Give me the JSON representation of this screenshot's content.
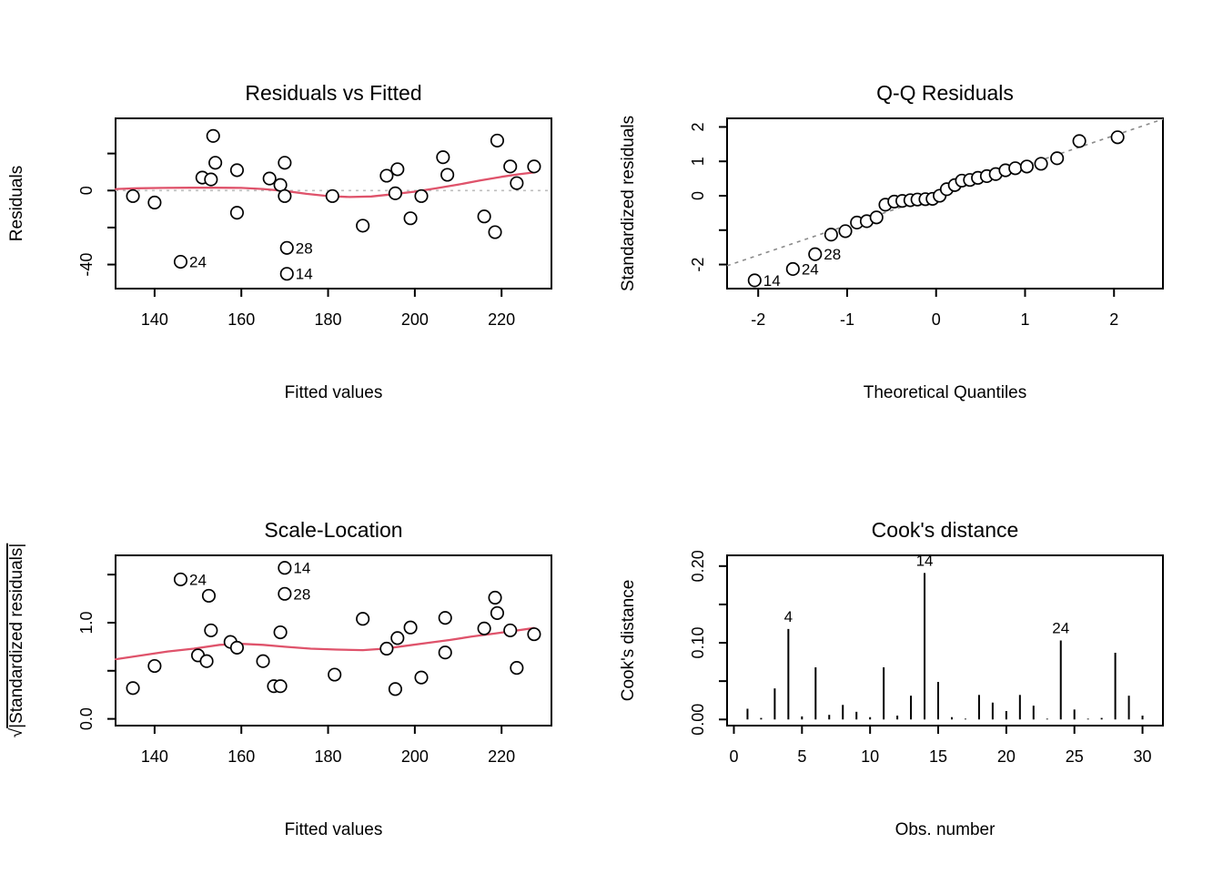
{
  "figure": {
    "background": "#ffffff",
    "smooth_red": "#DF536B",
    "ref_gray": "#BEBEBE",
    "qqline_gray": "#8a8a8a",
    "point_stroke": "#000000"
  },
  "chart_data": [
    {
      "type": "scatter",
      "title": "Residuals vs Fitted",
      "xlabel": "Fitted values",
      "ylabel": "Residuals",
      "xlim": [
        131,
        231.5
      ],
      "ylim": [
        -53,
        39
      ],
      "grid": false,
      "xticks": [
        {
          "v": 140,
          "label": "140"
        },
        {
          "v": 160,
          "label": "160"
        },
        {
          "v": 180,
          "label": "180"
        },
        {
          "v": 200,
          "label": "200"
        },
        {
          "v": 220,
          "label": "220"
        }
      ],
      "yticks": [
        {
          "v": 20,
          "label": ""
        },
        {
          "v": 0,
          "label": "0"
        },
        {
          "v": -20,
          "label": ""
        },
        {
          "v": -40,
          "label": "-40"
        }
      ],
      "ref_line": {
        "y": 0
      },
      "points": [
        [
          135,
          -3
        ],
        [
          140,
          -6.5
        ],
        [
          151,
          7
        ],
        [
          153.5,
          29.5
        ],
        [
          154,
          15
        ],
        [
          153,
          6
        ],
        [
          159,
          11
        ],
        [
          159,
          -12
        ],
        [
          166.5,
          6.5
        ],
        [
          169,
          3
        ],
        [
          170,
          15
        ],
        [
          170,
          -3
        ],
        [
          181,
          -3
        ],
        [
          188,
          -19
        ],
        [
          193.5,
          8
        ],
        [
          196,
          11.5
        ],
        [
          195.5,
          -1.5
        ],
        [
          199,
          -15
        ],
        [
          201.5,
          -3
        ],
        [
          206.5,
          18
        ],
        [
          207.5,
          8.5
        ],
        [
          216,
          -14
        ],
        [
          218.5,
          -22.5
        ],
        [
          219,
          27
        ],
        [
          222,
          13
        ],
        [
          223.5,
          4
        ],
        [
          227.5,
          13
        ]
      ],
      "labeled_points": [
        {
          "x": 146,
          "y": -38.5,
          "label": "24"
        },
        {
          "x": 170.5,
          "y": -31,
          "label": "28"
        },
        {
          "x": 170.5,
          "y": -45,
          "label": "14"
        }
      ],
      "smooth": [
        [
          131,
          0.8
        ],
        [
          136,
          1.2
        ],
        [
          142,
          1.4
        ],
        [
          148,
          1.5
        ],
        [
          154,
          1.5
        ],
        [
          160,
          1.4
        ],
        [
          165,
          0.8
        ],
        [
          170,
          -0.2
        ],
        [
          175,
          -1.8
        ],
        [
          180,
          -3
        ],
        [
          185,
          -3.5
        ],
        [
          190,
          -3.2
        ],
        [
          195,
          -2
        ],
        [
          200,
          -0.6
        ],
        [
          205,
          1.2
        ],
        [
          210,
          3.2
        ],
        [
          215,
          5.4
        ],
        [
          220,
          7.4
        ],
        [
          224,
          8.8
        ],
        [
          227.5,
          9.8
        ]
      ]
    },
    {
      "type": "qq",
      "title": "Q-Q Residuals",
      "xlabel": "Theoretical Quantiles",
      "ylabel": "Standardized residuals",
      "xlim": [
        -2.35,
        2.55
      ],
      "ylim": [
        -2.7,
        2.25
      ],
      "grid": false,
      "xticks": [
        {
          "v": -2,
          "label": "-2"
        },
        {
          "v": -1,
          "label": "-1"
        },
        {
          "v": 0,
          "label": "0"
        },
        {
          "v": 1,
          "label": "1"
        },
        {
          "v": 2,
          "label": "2"
        }
      ],
      "yticks": [
        {
          "v": 2,
          "label": "2"
        },
        {
          "v": 1,
          "label": "1"
        },
        {
          "v": 0,
          "label": "0"
        },
        {
          "v": -1,
          "label": ""
        },
        {
          "v": -2,
          "label": "-2"
        }
      ],
      "qq_line": {
        "slope": 0.87,
        "intercept": 0.01
      },
      "points": [
        [
          -1.18,
          -1.13
        ],
        [
          -1.02,
          -1.03
        ],
        [
          -0.89,
          -0.78
        ],
        [
          -0.78,
          -0.74
        ],
        [
          -0.67,
          -0.63
        ],
        [
          -0.57,
          -0.26
        ],
        [
          -0.47,
          -0.17
        ],
        [
          -0.38,
          -0.15
        ],
        [
          -0.29,
          -0.13
        ],
        [
          -0.21,
          -0.11
        ],
        [
          -0.12,
          -0.1
        ],
        [
          -0.04,
          -0.09
        ],
        [
          0.04,
          0.0
        ],
        [
          0.12,
          0.19
        ],
        [
          0.21,
          0.31
        ],
        [
          0.29,
          0.44
        ],
        [
          0.38,
          0.46
        ],
        [
          0.47,
          0.52
        ],
        [
          0.57,
          0.57
        ],
        [
          0.67,
          0.63
        ],
        [
          0.78,
          0.74
        ],
        [
          0.89,
          0.8
        ],
        [
          1.02,
          0.85
        ],
        [
          1.18,
          0.93
        ],
        [
          1.36,
          1.09
        ],
        [
          1.61,
          1.59
        ],
        [
          2.04,
          1.7
        ]
      ],
      "labeled_points": [
        {
          "x": -2.04,
          "y": -2.46,
          "label": "14"
        },
        {
          "x": -1.61,
          "y": -2.13,
          "label": "24"
        },
        {
          "x": -1.36,
          "y": -1.7,
          "label": "28"
        }
      ]
    },
    {
      "type": "scatter",
      "title": "Scale-Location",
      "xlabel": "Fitted values",
      "ylabel": "√|Standardized residuals|",
      "sqrt_overline": true,
      "xlim": [
        131,
        231.5
      ],
      "ylim": [
        -0.07,
        1.7
      ],
      "grid": false,
      "xticks": [
        {
          "v": 140,
          "label": "140"
        },
        {
          "v": 160,
          "label": "160"
        },
        {
          "v": 180,
          "label": "180"
        },
        {
          "v": 200,
          "label": "200"
        },
        {
          "v": 220,
          "label": "220"
        }
      ],
      "yticks": [
        {
          "v": 1.5,
          "label": ""
        },
        {
          "v": 1.0,
          "label": "1.0"
        },
        {
          "v": 0.5,
          "label": ""
        },
        {
          "v": 0.0,
          "label": "0.0"
        }
      ],
      "points": [
        [
          135,
          0.32
        ],
        [
          140,
          0.55
        ],
        [
          150,
          0.66
        ],
        [
          152.5,
          1.28
        ],
        [
          153,
          0.92
        ],
        [
          152,
          0.6
        ],
        [
          157.5,
          0.8
        ],
        [
          159,
          0.74
        ],
        [
          165,
          0.6
        ],
        [
          167.5,
          0.34
        ],
        [
          169,
          0.34
        ],
        [
          169,
          0.9
        ],
        [
          181.5,
          0.46
        ],
        [
          188,
          1.04
        ],
        [
          193.5,
          0.73
        ],
        [
          195.5,
          0.31
        ],
        [
          196,
          0.84
        ],
        [
          199,
          0.95
        ],
        [
          201.5,
          0.43
        ],
        [
          207,
          1.05
        ],
        [
          207,
          0.69
        ],
        [
          216,
          0.94
        ],
        [
          218.5,
          1.26
        ],
        [
          219,
          1.1
        ],
        [
          222,
          0.92
        ],
        [
          223.5,
          0.53
        ],
        [
          227.5,
          0.88
        ]
      ],
      "labeled_points": [
        {
          "x": 146,
          "y": 1.45,
          "label": "24"
        },
        {
          "x": 170,
          "y": 1.57,
          "label": "14"
        },
        {
          "x": 170,
          "y": 1.3,
          "label": "28"
        }
      ],
      "smooth": [
        [
          131,
          0.62
        ],
        [
          137,
          0.66
        ],
        [
          143,
          0.7
        ],
        [
          149,
          0.73
        ],
        [
          155,
          0.77
        ],
        [
          160,
          0.78
        ],
        [
          165,
          0.77
        ],
        [
          170,
          0.75
        ],
        [
          176,
          0.73
        ],
        [
          182,
          0.72
        ],
        [
          188,
          0.715
        ],
        [
          193,
          0.73
        ],
        [
          198,
          0.76
        ],
        [
          203,
          0.79
        ],
        [
          208,
          0.82
        ],
        [
          213,
          0.855
        ],
        [
          218,
          0.885
        ],
        [
          223,
          0.915
        ],
        [
          227.5,
          0.945
        ]
      ]
    },
    {
      "type": "spike",
      "title": "Cook's distance",
      "xlabel": "Obs. number",
      "ylabel": "Cook's distance",
      "xlim": [
        -0.5,
        31.5
      ],
      "ylim": [
        -0.008,
        0.214
      ],
      "grid": false,
      "xticks": [
        {
          "v": 0,
          "label": "0"
        },
        {
          "v": 5,
          "label": "5"
        },
        {
          "v": 10,
          "label": "10"
        },
        {
          "v": 15,
          "label": "15"
        },
        {
          "v": 20,
          "label": "20"
        },
        {
          "v": 25,
          "label": "25"
        },
        {
          "v": 30,
          "label": "30"
        }
      ],
      "yticks": [
        {
          "v": 0.2,
          "label": "0.20"
        },
        {
          "v": 0.15,
          "label": ""
        },
        {
          "v": 0.1,
          "label": "0.10"
        },
        {
          "v": 0.05,
          "label": ""
        },
        {
          "v": 0.0,
          "label": "0.00"
        }
      ],
      "values": [
        0.014,
        0.002,
        0.0405,
        0.118,
        0.004,
        0.068,
        0.006,
        0.019,
        0.01,
        0.003,
        0.068,
        0.005,
        0.031,
        0.191,
        0.049,
        0.003,
        0.001,
        0.032,
        0.022,
        0.011,
        0.032,
        0.018,
        0.001,
        0.103,
        0.013,
        0.001,
        0.002,
        0.087,
        0.031,
        0.005
      ],
      "labeled_bars": [
        {
          "obs": 4,
          "label": "4"
        },
        {
          "obs": 14,
          "label": "14"
        },
        {
          "obs": 24,
          "label": "24"
        }
      ]
    }
  ]
}
